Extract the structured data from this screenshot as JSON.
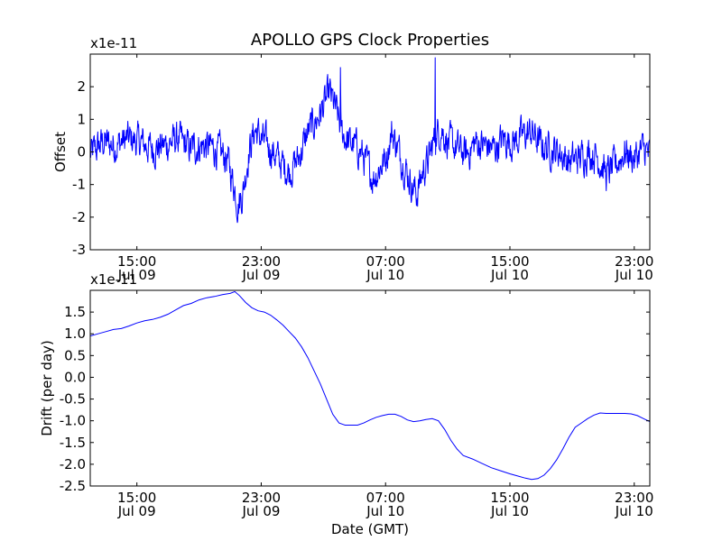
{
  "figure_title": "APOLLO GPS Clock Properties",
  "chart_data": [
    {
      "type": "line",
      "title": "APOLLO GPS Clock Properties",
      "xlabel": "",
      "ylabel": "Offset",
      "scale_label": "x1e-11",
      "x_unit": "hours since 2009-07-09 12:00 GMT",
      "xlim": [
        0,
        36
      ],
      "ylim": [
        -3,
        3
      ],
      "yticks": [
        "-3",
        "-2",
        "-1",
        "0",
        "1",
        "2"
      ],
      "ytick_values": [
        -3,
        -2,
        -1,
        0,
        1,
        2
      ],
      "xticks": [
        {
          "x": 3,
          "time": "15:00",
          "date": "Jul 09"
        },
        {
          "x": 11,
          "time": "23:00",
          "date": "Jul 09"
        },
        {
          "x": 19,
          "time": "07:00",
          "date": "Jul 10"
        },
        {
          "x": 27,
          "time": "15:00",
          "date": "Jul 10"
        },
        {
          "x": 35,
          "time": "23:00",
          "date": "Jul 10"
        }
      ],
      "color": "#0000ff",
      "note": "dense noisy trace; approximate envelope (x, y) with high-frequency noise around it",
      "series": [
        {
          "name": "Offset",
          "x": [
            0,
            0.8,
            1.6,
            2.4,
            3.2,
            4,
            4.8,
            5.6,
            6.4,
            7.2,
            8,
            8.8,
            9.2,
            9.5,
            9.8,
            10.2,
            10.6,
            11,
            11.6,
            12.2,
            12.8,
            13.4,
            14,
            14.6,
            15,
            15.4,
            15.8,
            16.2,
            16.6,
            17,
            17.4,
            17.8,
            18.2,
            18.6,
            19,
            19.4,
            19.8,
            20.2,
            20.6,
            21,
            21.4,
            21.8,
            22.2,
            22.6,
            23,
            23.6,
            24.2,
            24.8,
            25.4,
            26,
            26.6,
            27.2,
            27.8,
            28.4,
            29,
            29.6,
            30.2,
            30.8,
            31.4,
            32,
            32.6,
            33.2,
            33.8,
            34.4,
            35,
            35.6,
            36
          ],
          "y": [
            -0.1,
            0.3,
            0.2,
            0.4,
            0.3,
            0.1,
            0.2,
            0.4,
            0.1,
            0.2,
            0.1,
            -0.2,
            -0.9,
            -1.6,
            -1.3,
            0.0,
            0.7,
            0.4,
            0.1,
            -0.3,
            -0.6,
            -0.2,
            0.6,
            1.0,
            1.4,
            1.8,
            1.3,
            0.6,
            0.3,
            0.2,
            0.0,
            -0.4,
            -0.8,
            -0.5,
            -0.2,
            0.6,
            0.1,
            -0.4,
            -0.9,
            -1.3,
            -0.6,
            -0.2,
            0.5,
            0.7,
            0.3,
            0.1,
            -0.1,
            0.3,
            0.2,
            0.1,
            0.4,
            0.3,
            0.5,
            0.6,
            0.2,
            0.1,
            0.0,
            -0.3,
            -0.2,
            0.0,
            -0.1,
            -0.7,
            -0.4,
            0.0,
            -0.2,
            0.1,
            -0.1
          ]
        }
      ],
      "spikes": [
        {
          "x": 22.2,
          "y": 2.9
        },
        {
          "x": 16.1,
          "y": 2.6
        }
      ]
    },
    {
      "type": "line",
      "title": "",
      "xlabel": "Date (GMT)",
      "ylabel": "Drift (per day)",
      "scale_label": "x1e-11",
      "x_unit": "hours since 2009-07-09 12:00 GMT",
      "xlim": [
        0,
        36
      ],
      "ylim": [
        -2.5,
        2.0
      ],
      "yticks": [
        "-2.5",
        "-2.0",
        "-1.5",
        "-1.0",
        "-0.5",
        "0.0",
        "0.5",
        "1.0",
        "1.5"
      ],
      "ytick_values": [
        -2.5,
        -2.0,
        -1.5,
        -1.0,
        -0.5,
        0.0,
        0.5,
        1.0,
        1.5
      ],
      "xticks": [
        {
          "x": 3,
          "time": "15:00",
          "date": "Jul 09"
        },
        {
          "x": 11,
          "time": "23:00",
          "date": "Jul 09"
        },
        {
          "x": 19,
          "time": "07:00",
          "date": "Jul 10"
        },
        {
          "x": 27,
          "time": "15:00",
          "date": "Jul 10"
        },
        {
          "x": 35,
          "time": "23:00",
          "date": "Jul 10"
        }
      ],
      "color": "#0000ff",
      "series": [
        {
          "name": "Drift",
          "x": [
            0,
            0.5,
            1,
            1.5,
            2,
            2.5,
            3,
            3.5,
            4,
            4.5,
            5,
            5.5,
            6,
            6.5,
            7,
            7.5,
            8,
            8.5,
            9,
            9.3,
            9.6,
            10,
            10.4,
            10.8,
            11.2,
            11.6,
            12,
            12.4,
            12.8,
            13.2,
            13.6,
            14,
            14.4,
            14.8,
            15.2,
            15.6,
            16,
            16.4,
            16.8,
            17.2,
            17.6,
            18,
            18.4,
            18.8,
            19.2,
            19.6,
            20,
            20.4,
            20.8,
            21.2,
            21.6,
            22,
            22.4,
            22.8,
            23.2,
            23.6,
            24,
            24.6,
            25.2,
            25.8,
            26.4,
            27,
            27.6,
            28,
            28.4,
            28.8,
            29.2,
            29.6,
            30,
            30.4,
            30.8,
            31.2,
            31.6,
            32,
            32.4,
            32.8,
            33.2,
            33.6,
            34,
            34.4,
            34.8,
            35.2,
            35.6,
            36
          ],
          "y": [
            0.95,
            1.0,
            1.05,
            1.1,
            1.12,
            1.18,
            1.25,
            1.3,
            1.33,
            1.38,
            1.45,
            1.55,
            1.65,
            1.7,
            1.78,
            1.83,
            1.86,
            1.9,
            1.93,
            1.97,
            1.88,
            1.72,
            1.6,
            1.53,
            1.5,
            1.43,
            1.32,
            1.2,
            1.05,
            0.9,
            0.7,
            0.45,
            0.15,
            -0.15,
            -0.5,
            -0.85,
            -1.05,
            -1.1,
            -1.1,
            -1.1,
            -1.05,
            -0.98,
            -0.92,
            -0.88,
            -0.85,
            -0.85,
            -0.9,
            -0.98,
            -1.02,
            -1.0,
            -0.97,
            -0.95,
            -1.0,
            -1.2,
            -1.45,
            -1.65,
            -1.8,
            -1.88,
            -1.98,
            -2.08,
            -2.15,
            -2.22,
            -2.28,
            -2.32,
            -2.35,
            -2.33,
            -2.25,
            -2.1,
            -1.9,
            -1.65,
            -1.38,
            -1.15,
            -1.05,
            -0.95,
            -0.87,
            -0.82,
            -0.83,
            -0.83,
            -0.83,
            -0.83,
            -0.84,
            -0.88,
            -0.95,
            -1.02
          ]
        }
      ]
    }
  ]
}
